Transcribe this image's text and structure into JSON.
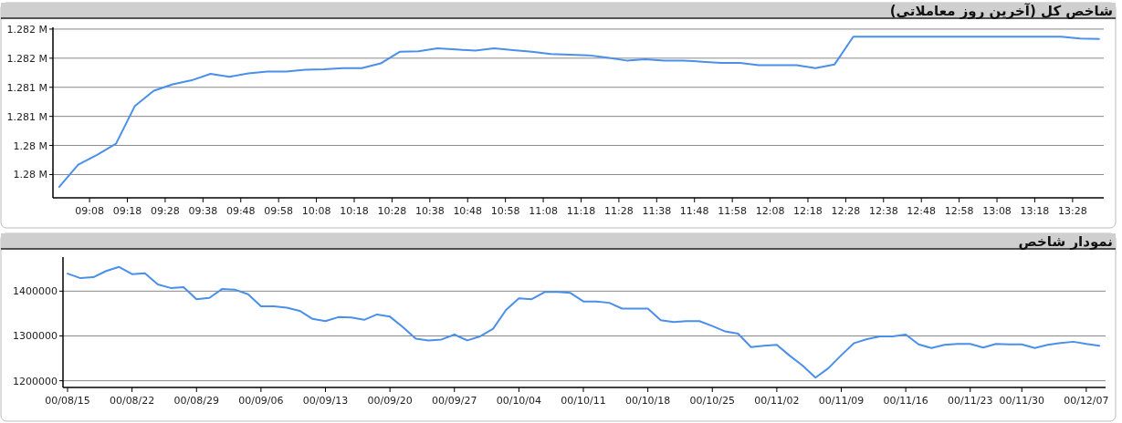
{
  "chart_data": [
    {
      "type": "line",
      "title": "شاخص کل (آخرین روز معاملاتی)",
      "color": "#4a8fea",
      "grid": "y",
      "x": [
        9.0,
        9.0833,
        9.1667,
        9.25,
        9.3333,
        9.4167,
        9.5,
        9.5833,
        9.6667,
        9.75,
        9.8333,
        9.9167,
        10.0,
        10.0833,
        10.1667,
        10.25,
        10.3333,
        10.4167,
        10.5,
        10.5833,
        10.6667,
        10.75,
        10.8333,
        10.9167,
        11.0,
        11.0833,
        11.1667,
        11.25,
        11.3333,
        11.4167,
        11.5,
        11.5833,
        11.6667,
        11.75,
        11.8333,
        11.9167,
        12.0,
        12.0833,
        12.1667,
        12.25,
        12.3333,
        12.4167,
        12.5,
        12.5833,
        12.6667,
        12.75,
        12.8333,
        12.9167,
        13.0,
        13.0833,
        13.1667,
        13.25,
        13.3333,
        13.4167,
        13.5,
        13.5833
      ],
      "values": [
        1279290,
        1279670,
        1279840,
        1280030,
        1280680,
        1280940,
        1281050,
        1281120,
        1281230,
        1281180,
        1281240,
        1281270,
        1281270,
        1281300,
        1281310,
        1281330,
        1281330,
        1281410,
        1281610,
        1281620,
        1281670,
        1281650,
        1281630,
        1281670,
        1281640,
        1281610,
        1281570,
        1281560,
        1281550,
        1281510,
        1281460,
        1281480,
        1281460,
        1281460,
        1281440,
        1281420,
        1281420,
        1281380,
        1281380,
        1281380,
        1281330,
        1281390,
        1281870,
        1281870,
        1281870,
        1281870,
        1281870,
        1281870,
        1281870,
        1281870,
        1281870,
        1281870,
        1281870,
        1281870,
        1281840,
        1281830
      ],
      "xlim": [
        8.972,
        13.604
      ],
      "xticks": [
        {
          "value": 9.1333,
          "label": "09:08"
        },
        {
          "value": 9.3,
          "label": "09:18"
        },
        {
          "value": 9.4667,
          "label": "09:28"
        },
        {
          "value": 9.6333,
          "label": "09:38"
        },
        {
          "value": 9.8,
          "label": "09:48"
        },
        {
          "value": 9.9667,
          "label": "09:58"
        },
        {
          "value": 10.1333,
          "label": "10:08"
        },
        {
          "value": 10.3,
          "label": "10:18"
        },
        {
          "value": 10.4667,
          "label": "10:28"
        },
        {
          "value": 10.6333,
          "label": "10:38"
        },
        {
          "value": 10.8,
          "label": "10:48"
        },
        {
          "value": 10.9667,
          "label": "10:58"
        },
        {
          "value": 11.1333,
          "label": "11:08"
        },
        {
          "value": 11.3,
          "label": "11:18"
        },
        {
          "value": 11.4667,
          "label": "11:28"
        },
        {
          "value": 11.6333,
          "label": "11:38"
        },
        {
          "value": 11.8,
          "label": "11:48"
        },
        {
          "value": 11.9667,
          "label": "11:58"
        },
        {
          "value": 12.1333,
          "label": "12:08"
        },
        {
          "value": 12.3,
          "label": "12:18"
        },
        {
          "value": 12.4667,
          "label": "12:28"
        },
        {
          "value": 12.6333,
          "label": "12:38"
        },
        {
          "value": 12.8,
          "label": "12:48"
        },
        {
          "value": 12.9667,
          "label": "12:58"
        },
        {
          "value": 13.1333,
          "label": "13:08"
        },
        {
          "value": 13.3,
          "label": "13:18"
        },
        {
          "value": 13.4667,
          "label": "13:28"
        }
      ],
      "ylim": [
        1279100,
        1282030
      ],
      "yticks": [
        {
          "value": 1279500,
          "label": "1.28 M"
        },
        {
          "value": 1280000,
          "label": "1.28 M"
        },
        {
          "value": 1280500,
          "label": "1.281 M"
        },
        {
          "value": 1281000,
          "label": "1.281 M"
        },
        {
          "value": 1281500,
          "label": "1.282 M"
        },
        {
          "value": 1282000,
          "label": "1.282 M"
        }
      ]
    },
    {
      "type": "line",
      "title": "نمودار شاخص",
      "color": "#4a8fea",
      "grid": "y",
      "categories": [
        "00/08/15",
        null,
        null,
        null,
        null,
        "00/08/22",
        null,
        null,
        null,
        null,
        "00/08/29",
        null,
        null,
        null,
        null,
        "00/09/06",
        null,
        null,
        null,
        null,
        "00/09/13",
        null,
        null,
        null,
        null,
        "00/09/20",
        null,
        null,
        null,
        null,
        "00/09/27",
        null,
        null,
        null,
        null,
        "00/10/04",
        null,
        null,
        null,
        null,
        "00/10/11",
        null,
        null,
        null,
        null,
        "00/10/18",
        null,
        null,
        null,
        null,
        "00/10/25",
        null,
        null,
        null,
        null,
        "00/11/02",
        null,
        null,
        null,
        null,
        "00/11/09",
        null,
        null,
        null,
        null,
        "00/11/16",
        null,
        null,
        null,
        null,
        "00/11/23",
        null,
        null,
        null,
        "00/11/30",
        null,
        null,
        null,
        null,
        "00/12/07",
        null
      ],
      "values": [
        1439000,
        1429000,
        1431000,
        1445000,
        1454000,
        1438000,
        1440000,
        1415000,
        1407000,
        1409000,
        1382000,
        1385000,
        1405000,
        1403000,
        1393000,
        1366000,
        1366000,
        1363000,
        1356000,
        1338000,
        1333000,
        1342000,
        1341000,
        1336000,
        1348000,
        1343000,
        1320000,
        1294000,
        1290000,
        1292000,
        1303000,
        1290000,
        1299000,
        1316000,
        1358000,
        1384000,
        1382000,
        1398000,
        1398000,
        1396000,
        1377000,
        1377000,
        1374000,
        1361000,
        1361000,
        1361000,
        1335000,
        1331000,
        1333000,
        1333000,
        1322000,
        1310000,
        1305000,
        1275000,
        1278000,
        1280000,
        1256000,
        1234000,
        1207000,
        1228000,
        1257000,
        1284000,
        1293000,
        1299000,
        1299000,
        1303000,
        1281000,
        1273000,
        1280000,
        1282000,
        1282000,
        1274000,
        1282000,
        1281000,
        1281000,
        1273000,
        1280000,
        1284000,
        1287000,
        1282000,
        1278000
      ],
      "ylim": [
        1185000,
        1476000
      ],
      "yticks": [
        1200000,
        1300000,
        1400000
      ]
    }
  ]
}
